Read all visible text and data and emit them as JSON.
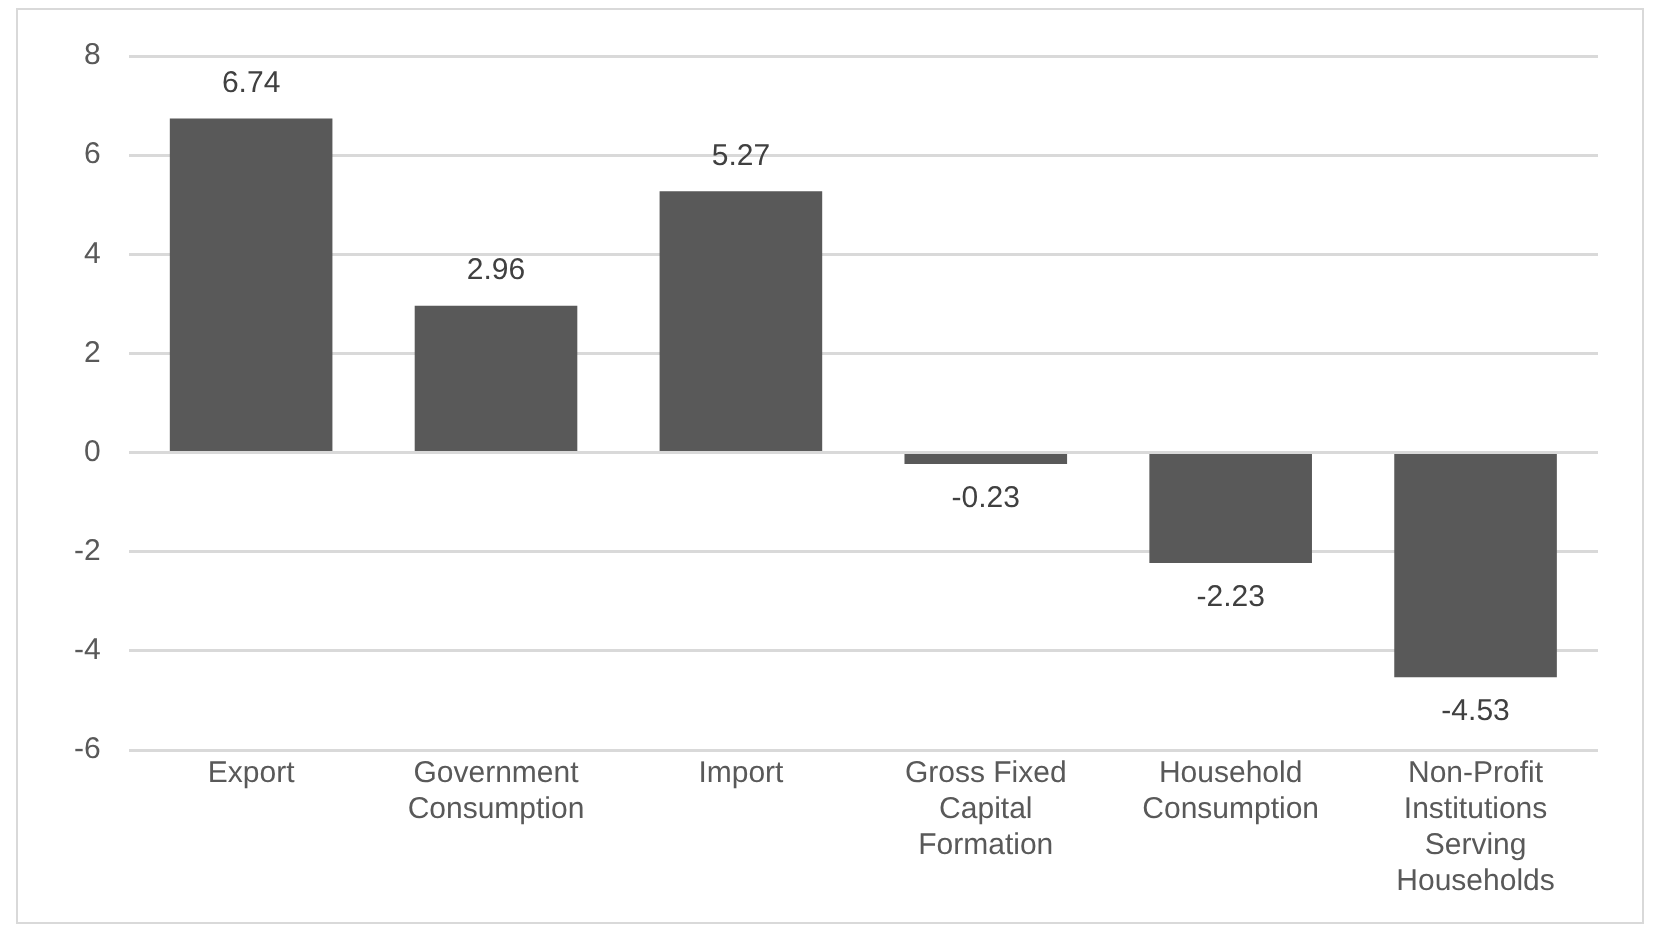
{
  "chart_data": {
    "type": "bar",
    "categories": [
      "Export",
      "Government Consumption",
      "Import",
      "Gross Fixed Capital Formation",
      "Household Consumption",
      "Non-Profit Institutions Serving Households"
    ],
    "values": [
      6.74,
      2.96,
      5.27,
      -0.23,
      -2.23,
      -4.53
    ],
    "color": "#595959",
    "ylim": [
      -6,
      8
    ],
    "yticks": [
      -6,
      -4,
      -2,
      0,
      2,
      4,
      6,
      8
    ],
    "grid": "y",
    "legend": false,
    "data_labels": true
  }
}
